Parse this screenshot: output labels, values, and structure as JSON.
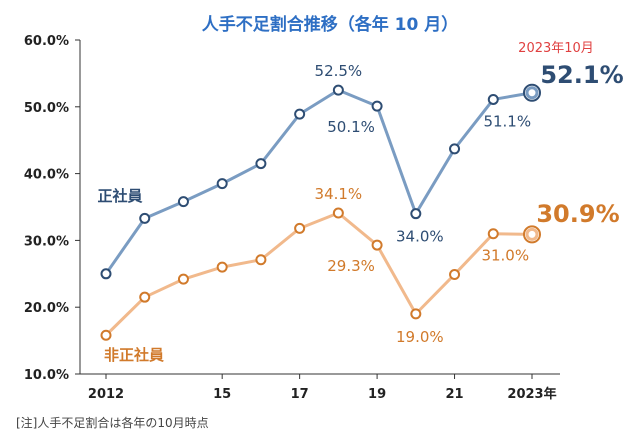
{
  "chart_data": {
    "type": "line",
    "title": "人手不足割合推移（各年 10 月）",
    "x": [
      2012,
      2013,
      2014,
      2015,
      2016,
      2017,
      2018,
      2019,
      2020,
      2021,
      2022,
      2023
    ],
    "x_tick_labels": [
      "2012",
      "15",
      "17",
      "19",
      "21",
      "2023年"
    ],
    "x_tick_values": [
      2012,
      2015,
      2017,
      2019,
      2021,
      2023
    ],
    "y_tick_labels": [
      "10.0%",
      "20.0%",
      "30.0%",
      "40.0%",
      "50.0%",
      "60.0%"
    ],
    "y_tick_values": [
      10,
      20,
      30,
      40,
      50,
      60
    ],
    "ylim": [
      10,
      60
    ],
    "grid": false,
    "series": [
      {
        "name": "正社員",
        "color": "#7a9cc2",
        "label_color": "#2e4d73",
        "values": [
          25.0,
          33.3,
          35.8,
          38.5,
          41.5,
          48.9,
          52.5,
          50.1,
          34.0,
          43.7,
          51.1,
          52.1
        ],
        "data_labels": [
          {
            "x": 2018,
            "text": "52.5%"
          },
          {
            "x": 2019,
            "text": "50.1%"
          },
          {
            "x": 2020,
            "text": "34.0%"
          },
          {
            "x": 2022,
            "text": "51.1%"
          }
        ],
        "final_label": "52.1%"
      },
      {
        "name": "非正社員",
        "color": "#f1b98c",
        "label_color": "#d17a2b",
        "values": [
          15.8,
          21.5,
          24.2,
          26.0,
          27.1,
          31.8,
          34.1,
          29.3,
          19.0,
          24.9,
          31.0,
          30.9
        ],
        "data_labels": [
          {
            "x": 2018,
            "text": "34.1%"
          },
          {
            "x": 2019,
            "text": "29.3%"
          },
          {
            "x": 2020,
            "text": "19.0%"
          },
          {
            "x": 2022,
            "text": "31.0%"
          }
        ],
        "final_label": "30.9%"
      }
    ],
    "annotation": {
      "text": "2023年10月",
      "color": "#e04040"
    },
    "note": "[注]人手不足割合は各年の10月時点"
  }
}
